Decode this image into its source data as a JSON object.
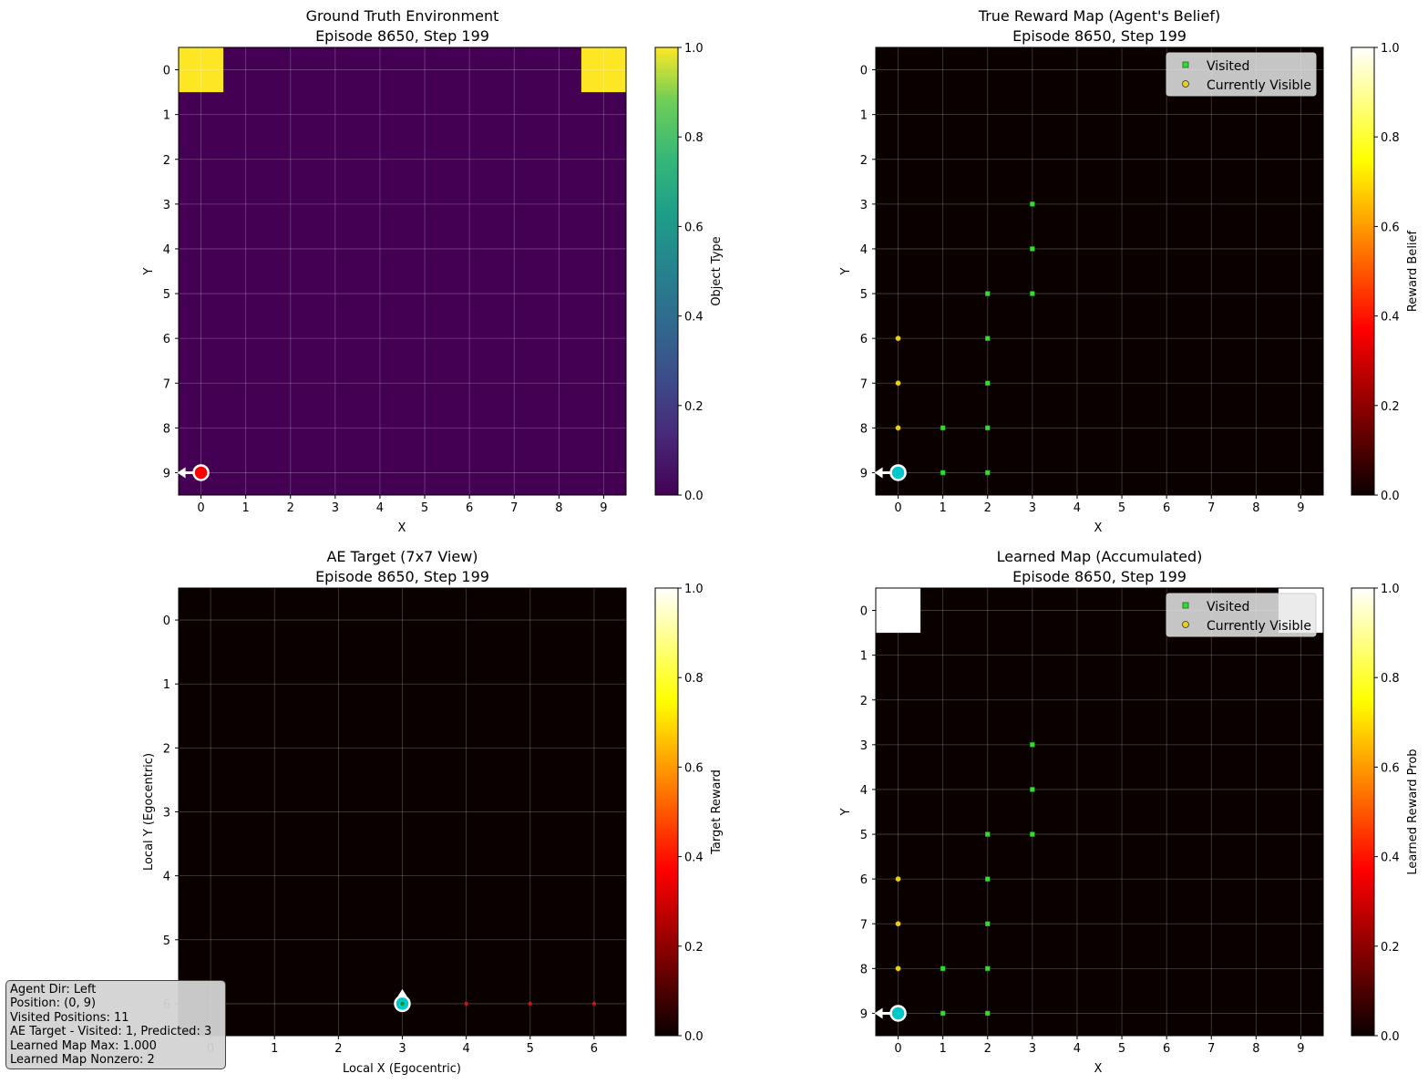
{
  "info": [
    "Agent Dir: Left",
    "Position: (0, 9)",
    "Visited Positions: 11",
    "AE Target - Visited: 1, Predicted: 3",
    "Learned Map Max: 1.000",
    "Learned Map Nonzero: 2"
  ],
  "chart_data": [
    {
      "type": "heatmap",
      "title": "Ground Truth Environment",
      "subtitle": "Episode 8650, Step 199",
      "xlabel": "X",
      "ylabel": "Y",
      "colormap": "viridis",
      "colorbar_label": "Object Type",
      "colorbar_ticks": [
        "0.0",
        "0.2",
        "0.4",
        "0.6",
        "0.8",
        "1.0"
      ],
      "x_ticks": [
        "0",
        "1",
        "2",
        "3",
        "4",
        "5",
        "6",
        "7",
        "8",
        "9"
      ],
      "y_ticks": [
        "0",
        "1",
        "2",
        "3",
        "4",
        "5",
        "6",
        "7",
        "8",
        "9"
      ],
      "grid_size": 10,
      "nonzero_cells": [
        {
          "x": 0,
          "y": 0,
          "value": 1.0
        },
        {
          "x": 9,
          "y": 0,
          "value": 1.0
        }
      ],
      "agent": {
        "x": 0,
        "y": 9,
        "direction": "left",
        "marker_color": "#ff0000"
      }
    },
    {
      "type": "heatmap",
      "title": "True Reward Map (Agent's Belief)",
      "subtitle": "Episode 8650, Step 199",
      "xlabel": "X",
      "ylabel": "Y",
      "colormap": "hot",
      "colorbar_label": "Reward Belief",
      "colorbar_ticks": [
        "0.0",
        "0.2",
        "0.4",
        "0.6",
        "0.8",
        "1.0"
      ],
      "x_ticks": [
        "0",
        "1",
        "2",
        "3",
        "4",
        "5",
        "6",
        "7",
        "8",
        "9"
      ],
      "y_ticks": [
        "0",
        "1",
        "2",
        "3",
        "4",
        "5",
        "6",
        "7",
        "8",
        "9"
      ],
      "grid_size": 10,
      "nonzero_cells": [],
      "legend": [
        "Visited",
        "Currently Visible"
      ],
      "visited": [
        [
          3,
          3
        ],
        [
          3,
          4
        ],
        [
          2,
          5
        ],
        [
          3,
          5
        ],
        [
          2,
          6
        ],
        [
          2,
          7
        ],
        [
          1,
          8
        ],
        [
          2,
          8
        ],
        [
          1,
          9
        ],
        [
          2,
          9
        ]
      ],
      "visible": [
        [
          0,
          6
        ],
        [
          0,
          7
        ],
        [
          0,
          8
        ]
      ],
      "agent": {
        "x": 0,
        "y": 9,
        "direction": "left",
        "marker_color": "#00c8c8"
      }
    },
    {
      "type": "heatmap",
      "title": "AE Target (7x7 View)",
      "subtitle": "Episode 8650, Step 199",
      "xlabel": "Local X (Egocentric)",
      "ylabel": "Local Y (Egocentric)",
      "colormap": "hot",
      "colorbar_label": "Target Reward",
      "colorbar_ticks": [
        "0.0",
        "0.2",
        "0.4",
        "0.6",
        "0.8",
        "1.0"
      ],
      "x_ticks": [
        "0",
        "1",
        "2",
        "3",
        "4",
        "5",
        "6"
      ],
      "y_ticks": [
        "0",
        "1",
        "2",
        "3",
        "4",
        "5",
        "6"
      ],
      "grid_size": 7,
      "nonzero_cells": [],
      "visited_dots": [
        [
          3,
          6
        ]
      ],
      "predicted_dots": [
        [
          4,
          6
        ],
        [
          5,
          6
        ],
        [
          6,
          6
        ]
      ],
      "agent": {
        "x": 3,
        "y": 6,
        "direction": "up",
        "marker_color": "#00c8c8"
      }
    },
    {
      "type": "heatmap",
      "title": "Learned Map (Accumulated)",
      "subtitle": "Episode 8650, Step 199",
      "xlabel": "X",
      "ylabel": "Y",
      "colormap": "hot",
      "colorbar_label": "Learned Reward Prob",
      "colorbar_ticks": [
        "0.0",
        "0.2",
        "0.4",
        "0.6",
        "0.8",
        "1.0"
      ],
      "x_ticks": [
        "0",
        "1",
        "2",
        "3",
        "4",
        "5",
        "6",
        "7",
        "8",
        "9"
      ],
      "y_ticks": [
        "0",
        "1",
        "2",
        "3",
        "4",
        "5",
        "6",
        "7",
        "8",
        "9"
      ],
      "grid_size": 10,
      "nonzero_cells": [
        {
          "x": 0,
          "y": 0,
          "value": 1.0
        },
        {
          "x": 9,
          "y": 0,
          "value": 1.0
        }
      ],
      "legend": [
        "Visited",
        "Currently Visible"
      ],
      "visited": [
        [
          3,
          3
        ],
        [
          3,
          4
        ],
        [
          2,
          5
        ],
        [
          3,
          5
        ],
        [
          2,
          6
        ],
        [
          2,
          7
        ],
        [
          1,
          8
        ],
        [
          2,
          8
        ],
        [
          1,
          9
        ],
        [
          2,
          9
        ]
      ],
      "visible": [
        [
          0,
          6
        ],
        [
          0,
          7
        ],
        [
          0,
          8
        ]
      ],
      "agent": {
        "x": 0,
        "y": 9,
        "direction": "left",
        "marker_color": "#00c8c8"
      }
    }
  ]
}
